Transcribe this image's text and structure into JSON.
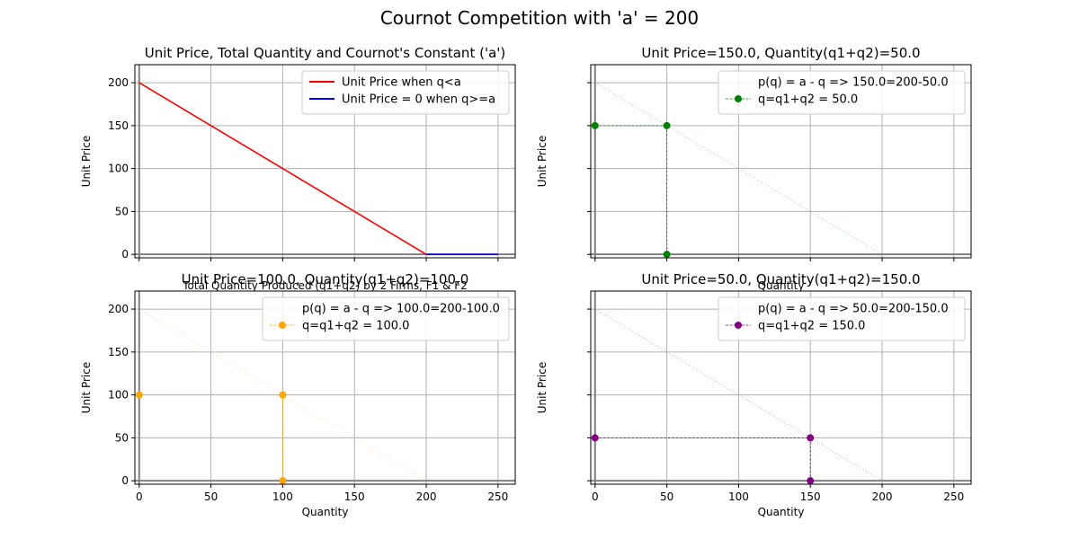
{
  "suptitle": "Cournot Competition with 'a' = 200",
  "chart_data": [
    {
      "type": "line",
      "title": "Unit Price, Total Quantity and Cournot's Constant ('a')",
      "xlabel": "Total Quantity Produced (q1+q2) by 2 Firms, F1 & F2",
      "ylabel": "Unit Price",
      "xlim": [
        -3,
        262
      ],
      "ylim": [
        -4,
        221
      ],
      "xticks": [
        0,
        50,
        100,
        150,
        200,
        250
      ],
      "yticks": [
        0,
        50,
        100,
        150,
        200
      ],
      "show_xtick_labels": false,
      "show_ytick_labels": true,
      "grid": true,
      "legend_position": "upper-right",
      "series": [
        {
          "name": "Unit Price when q<a",
          "color": "#ff0000",
          "x": [
            0,
            200
          ],
          "y": [
            200,
            0
          ]
        },
        {
          "name": "Unit Price = 0 when q>=a",
          "color": "#0000ff",
          "x": [
            200,
            250
          ],
          "y": [
            0,
            0
          ]
        }
      ]
    },
    {
      "type": "line",
      "title": "Unit Price=150.0, Quantity(q1+q2)=50.0",
      "xlabel": "Quantity",
      "ylabel": "Unit Price",
      "xlim": [
        -3,
        262
      ],
      "ylim": [
        -4,
        221
      ],
      "xticks": [
        0,
        50,
        100,
        150,
        200,
        250
      ],
      "yticks": [
        0,
        50,
        100,
        150,
        200
      ],
      "show_xtick_labels": false,
      "show_ytick_labels": false,
      "grid": true,
      "legend_position": "upper-right",
      "demand_line": {
        "x": [
          0,
          200
        ],
        "y": [
          200,
          0
        ]
      },
      "point": {
        "q": 50.0,
        "p": 150.0
      },
      "color": "#008000",
      "legend": [
        "p(q) = a - q => 150.0=200-50.0",
        "q=q1+q2 = 50.0"
      ]
    },
    {
      "type": "line",
      "title": "Unit Price=100.0, Quantity(q1+q2)=100.0",
      "xlabel": "Quantity",
      "ylabel": "Unit Price",
      "xlim": [
        -3,
        262
      ],
      "ylim": [
        -4,
        221
      ],
      "xticks": [
        0,
        50,
        100,
        150,
        200,
        250
      ],
      "yticks": [
        0,
        50,
        100,
        150,
        200
      ],
      "show_xtick_labels": true,
      "show_ytick_labels": true,
      "grid": true,
      "legend_position": "upper-right",
      "demand_line": {
        "x": [
          0,
          200
        ],
        "y": [
          200,
          0
        ]
      },
      "point": {
        "q": 100.0,
        "p": 100.0
      },
      "color": "#ffa500",
      "legend": [
        "p(q) = a - q => 100.0=200-100.0",
        "q=q1+q2 = 100.0"
      ]
    },
    {
      "type": "line",
      "title": "Unit Price=50.0, Quantity(q1+q2)=150.0",
      "xlabel": "Quantity",
      "ylabel": "Unit Price",
      "xlim": [
        -3,
        262
      ],
      "ylim": [
        -4,
        221
      ],
      "xticks": [
        0,
        50,
        100,
        150,
        200,
        250
      ],
      "yticks": [
        0,
        50,
        100,
        150,
        200
      ],
      "show_xtick_labels": true,
      "show_ytick_labels": false,
      "grid": true,
      "legend_position": "upper-right",
      "demand_line": {
        "x": [
          0,
          200
        ],
        "y": [
          200,
          0
        ]
      },
      "point": {
        "q": 150.0,
        "p": 50.0
      },
      "color": "#800080",
      "legend": [
        "p(q) = a - q => 50.0=200-150.0",
        "q=q1+q2 = 150.0"
      ]
    }
  ]
}
